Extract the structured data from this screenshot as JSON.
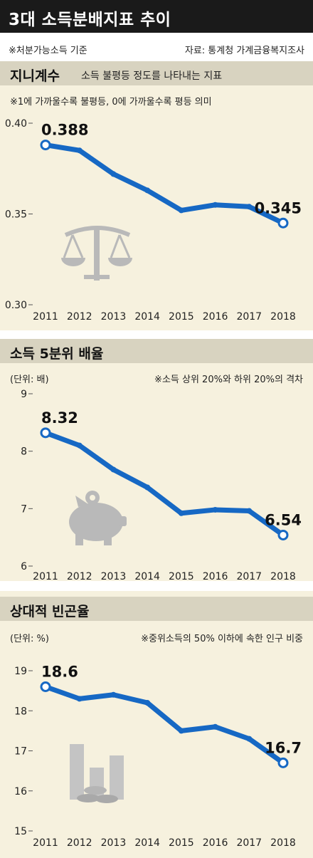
{
  "header": {
    "title": "3대 소득분배지표 추이",
    "basis_note": "※처분가능소득 기준",
    "source": "자료: 통계청 가계금융복지조사"
  },
  "chart_data": [
    {
      "type": "line",
      "title": "지니계수",
      "subtitle": "소득 불평등 정도를 나타내는 지표",
      "note": "※1에 가까울수록 불평등, 0에 가까울수록 평등 의미",
      "unit": "",
      "x": [
        "2011",
        "2012",
        "2013",
        "2014",
        "2015",
        "2016",
        "2017",
        "2018"
      ],
      "values": [
        0.388,
        0.385,
        0.372,
        0.363,
        0.352,
        0.355,
        0.354,
        0.345
      ],
      "labels": [
        {
          "index": 0,
          "text": "0.388"
        },
        {
          "index": 7,
          "text": "0.345"
        }
      ],
      "ylim": [
        0.3,
        0.4
      ],
      "yticks": [
        "0.30",
        "0.35",
        "0.40"
      ],
      "icon": "scale-icon",
      "color": "#1668c4"
    },
    {
      "type": "line",
      "title": "소득 5분위 배율",
      "subtitle": "",
      "unit": "(단위: 배)",
      "note": "※소득 상위 20%와 하위 20%의 격차",
      "x": [
        "2011",
        "2012",
        "2013",
        "2014",
        "2015",
        "2016",
        "2017",
        "2018"
      ],
      "values": [
        8.32,
        8.1,
        7.68,
        7.37,
        6.92,
        6.98,
        6.96,
        6.54
      ],
      "labels": [
        {
          "index": 0,
          "text": "8.32"
        },
        {
          "index": 7,
          "text": "6.54"
        }
      ],
      "ylim": [
        6,
        9
      ],
      "yticks": [
        "6",
        "7",
        "8",
        "9"
      ],
      "icon": "piggy-bank-icon",
      "color": "#1668c4"
    },
    {
      "type": "line",
      "title": "상대적 빈곤율",
      "subtitle": "",
      "unit": "(단위: %)",
      "note": "※중위소득의 50% 이하에 속한 인구 비중",
      "x": [
        "2011",
        "2012",
        "2013",
        "2014",
        "2015",
        "2016",
        "2017",
        "2018"
      ],
      "values": [
        18.6,
        18.3,
        18.4,
        18.2,
        17.5,
        17.6,
        17.3,
        16.7
      ],
      "labels": [
        {
          "index": 0,
          "text": "18.6"
        },
        {
          "index": 7,
          "text": "16.7"
        }
      ],
      "ylim": [
        15,
        19
      ],
      "yticks": [
        "15",
        "16",
        "17",
        "18",
        "19"
      ],
      "icon": "bar-coins-icon",
      "color": "#1668c4"
    }
  ]
}
